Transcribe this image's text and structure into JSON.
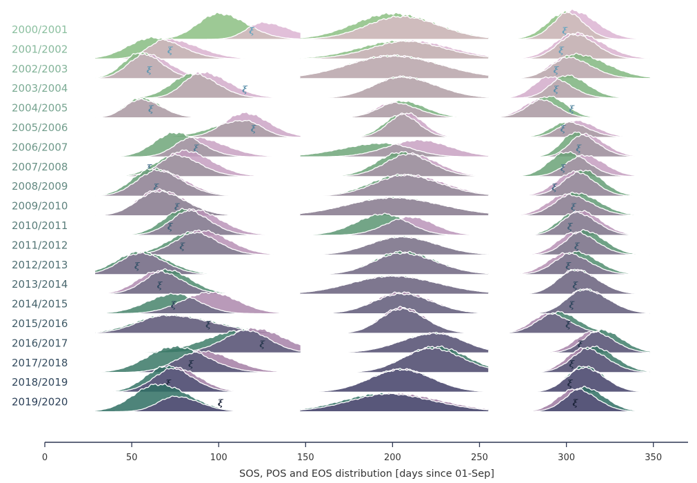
{
  "chart_data": {
    "type": "area",
    "subtype": "ridgeline",
    "title": "",
    "xlabel": "SOS, POS and EOS distribution [days since 01-Sep]",
    "ylabel": "",
    "xlim": [
      0,
      370
    ],
    "xticks": [
      0,
      50,
      100,
      150,
      200,
      250,
      300,
      350
    ],
    "grid": false,
    "marker_symbol": "ξ",
    "series_colors": {
      "first": "#8cc083",
      "second": "#dcb4d2"
    },
    "label_colors": {
      "first": "#8cc0a0",
      "last": "#2c4058"
    },
    "fill_colors": {
      "first": "#cfbcbd",
      "last": "#58577a"
    },
    "segments": [
      "SOS",
      "POS",
      "EOS"
    ],
    "rows": [
      {
        "season": "2000/2001",
        "peaks": [
          [
            100,
            125,
            0.85,
            12,
            16,
            0.55,
            9,
            16,
            119
          ],
          [
            200,
            205,
            0.85,
            22,
            25,
            0.75,
            20,
            22
          ],
          [
            300,
            303,
            0.9,
            11,
            10,
            0.95,
            10,
            14,
            299
          ]
        ]
      },
      {
        "season": "2001/2002",
        "peaks": [
          [
            62,
            70,
            0.7,
            14,
            16,
            0.65,
            10,
            18,
            72
          ],
          [
            205,
            210,
            0.6,
            24,
            24,
            0.6,
            22,
            24
          ],
          [
            305,
            305,
            0.8,
            10,
            12,
            0.85,
            12,
            16,
            297
          ]
        ]
      },
      {
        "season": "2002/2003",
        "peaks": [
          [
            55,
            58,
            0.85,
            10,
            12,
            0.8,
            10,
            14,
            60
          ],
          [
            200,
            200,
            0.75,
            26,
            28,
            0.75,
            26,
            28
          ],
          [
            305,
            300,
            0.8,
            12,
            18,
            0.7,
            10,
            14,
            294
          ]
        ]
      },
      {
        "season": "2003/2004",
        "peaks": [
          [
            85,
            90,
            0.8,
            12,
            14,
            0.85,
            10,
            16,
            115
          ],
          [
            205,
            205,
            0.7,
            16,
            20,
            0.7,
            16,
            20
          ],
          [
            300,
            290,
            0.75,
            9,
            12,
            0.7,
            9,
            12,
            294
          ]
        ]
      },
      {
        "season": "2004/2005",
        "peaks": [
          [
            55,
            55,
            0.65,
            9,
            12,
            0.6,
            9,
            12,
            61
          ],
          [
            205,
            200,
            0.55,
            12,
            14,
            0.5,
            10,
            14
          ],
          [
            290,
            285,
            0.7,
            11,
            10,
            0.6,
            10,
            10,
            303
          ]
        ]
      },
      {
        "season": "2005/2006",
        "peaks": [
          [
            115,
            115,
            0.55,
            18,
            10,
            0.8,
            12,
            14,
            120
          ],
          [
            205,
            208,
            0.75,
            10,
            10,
            0.8,
            10,
            10
          ],
          [
            300,
            305,
            0.5,
            9,
            12,
            0.55,
            9,
            12,
            298
          ]
        ]
      },
      {
        "season": "2006/2007",
        "peaks": [
          [
            75,
            85,
            0.8,
            12,
            14,
            0.65,
            10,
            18,
            87
          ],
          [
            195,
            215,
            0.45,
            24,
            16,
            0.55,
            18,
            18
          ],
          [
            305,
            310,
            0.8,
            8,
            12,
            0.75,
            8,
            12,
            307
          ]
        ]
      },
      {
        "season": "2007/2008",
        "peaks": [
          [
            75,
            80,
            0.7,
            12,
            14,
            0.85,
            12,
            16,
            60
          ],
          [
            205,
            210,
            0.8,
            14,
            16,
            0.75,
            14,
            16
          ],
          [
            300,
            310,
            0.8,
            10,
            12,
            0.7,
            10,
            12,
            298
          ]
        ]
      },
      {
        "season": "2008/2009",
        "peaks": [
          [
            62,
            65,
            0.9,
            12,
            16,
            0.85,
            12,
            16,
            64
          ],
          [
            205,
            208,
            0.7,
            18,
            22,
            0.7,
            18,
            22
          ],
          [
            310,
            305,
            0.85,
            11,
            11,
            0.8,
            11,
            11,
            293
          ]
        ]
      },
      {
        "season": "2009/2010",
        "peaks": [
          [
            65,
            65,
            0.8,
            12,
            16,
            0.85,
            12,
            16,
            76
          ],
          [
            200,
            200,
            0.6,
            26,
            28,
            0.6,
            26,
            28
          ],
          [
            305,
            300,
            0.75,
            11,
            14,
            0.7,
            11,
            14,
            304
          ]
        ]
      },
      {
        "season": "2010/2011",
        "peaks": [
          [
            80,
            85,
            0.85,
            12,
            14,
            0.85,
            12,
            16,
            72
          ],
          [
            195,
            210,
            0.7,
            16,
            14,
            0.6,
            14,
            14
          ],
          [
            305,
            308,
            0.75,
            10,
            12,
            0.8,
            10,
            12,
            302
          ]
        ]
      },
      {
        "season": "2011/2012",
        "peaks": [
          [
            85,
            90,
            0.75,
            14,
            14,
            0.8,
            14,
            16,
            79
          ],
          [
            205,
            205,
            0.6,
            18,
            20,
            0.6,
            18,
            20
          ],
          [
            310,
            305,
            0.8,
            10,
            12,
            0.75,
            10,
            12,
            306
          ]
        ]
      },
      {
        "season": "2012/2013",
        "peaks": [
          [
            55,
            55,
            0.75,
            14,
            16,
            0.7,
            12,
            14,
            53
          ],
          [
            205,
            205,
            0.75,
            16,
            20,
            0.7,
            16,
            20
          ],
          [
            305,
            300,
            0.75,
            11,
            13,
            0.7,
            11,
            13,
            301
          ]
        ]
      },
      {
        "season": "2013/2014",
        "peaks": [
          [
            70,
            65,
            0.8,
            12,
            14,
            0.75,
            12,
            14,
            66
          ],
          [
            200,
            200,
            0.6,
            24,
            26,
            0.6,
            24,
            26
          ],
          [
            305,
            305,
            0.8,
            10,
            13,
            0.8,
            10,
            13,
            305
          ]
        ]
      },
      {
        "season": "2014/2015",
        "peaks": [
          [
            75,
            95,
            0.65,
            16,
            14,
            0.7,
            16,
            16,
            74
          ],
          [
            205,
            205,
            0.65,
            16,
            18,
            0.7,
            16,
            18
          ],
          [
            310,
            310,
            0.8,
            10,
            14,
            0.8,
            10,
            14,
            303
          ]
        ]
      },
      {
        "season": "2015/2016",
        "peaks": [
          [
            70,
            70,
            0.6,
            18,
            28,
            0.6,
            16,
            26,
            94
          ],
          [
            205,
            205,
            0.8,
            12,
            14,
            0.85,
            12,
            14
          ],
          [
            295,
            290,
            0.7,
            11,
            12,
            0.65,
            10,
            12,
            301
          ]
        ]
      },
      {
        "season": "2016/2017",
        "peaks": [
          [
            115,
            120,
            0.75,
            22,
            14,
            0.8,
            16,
            18,
            125
          ],
          [
            225,
            225,
            0.65,
            20,
            16,
            0.65,
            20,
            16
          ],
          [
            320,
            315,
            0.75,
            10,
            12,
            0.7,
            10,
            12,
            308
          ]
        ]
      },
      {
        "season": "2017/2018",
        "peaks": [
          [
            75,
            90,
            0.85,
            16,
            18,
            0.7,
            14,
            18,
            84
          ],
          [
            225,
            222,
            0.85,
            18,
            18,
            0.8,
            16,
            18
          ],
          [
            315,
            310,
            0.85,
            11,
            13,
            0.8,
            10,
            13,
            303
          ]
        ]
      },
      {
        "season": "2018/2019",
        "peaks": [
          [
            70,
            75,
            0.85,
            12,
            14,
            0.8,
            12,
            14,
            71
          ],
          [
            205,
            205,
            0.75,
            18,
            18,
            0.75,
            18,
            18
          ],
          [
            310,
            310,
            0.85,
            10,
            12,
            0.8,
            10,
            12,
            302
          ]
        ]
      },
      {
        "season": "2019/2020",
        "peaks": [
          [
            65,
            75,
            0.9,
            14,
            18,
            0.5,
            10,
            14,
            101
          ],
          [
            195,
            200,
            0.6,
            24,
            28,
            0.6,
            24,
            28
          ],
          [
            310,
            305,
            0.8,
            10,
            12,
            0.75,
            10,
            12,
            305
          ]
        ]
      }
    ]
  }
}
